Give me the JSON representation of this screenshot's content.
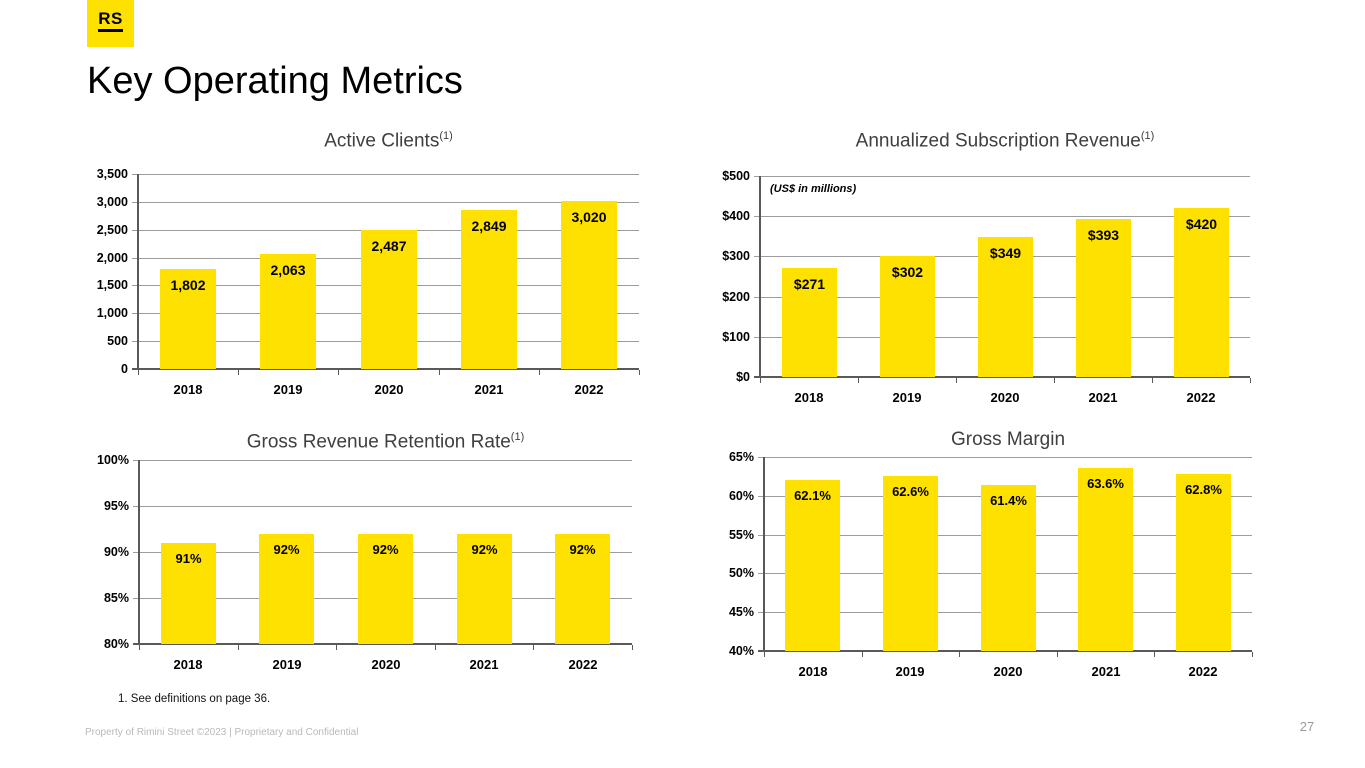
{
  "slide": {
    "logo_text": "RS",
    "title": "Key Operating Metrics",
    "footnote": "1. See definitions on page 36.",
    "footer": "Property of Rimini Street ©2023  |  Proprietary and Confidential",
    "page_number": "27"
  },
  "colors": {
    "bar_yellow": "#FFE100",
    "logo_yellow": "#FFE100",
    "gridline_gray": "#9d9d9d",
    "axis_gray": "#595959",
    "chart_title_gray": "#3f3f3f",
    "footer_gray": "#b9b9b9"
  },
  "chart_data": [
    {
      "type": "bar",
      "title": "Active Clients",
      "title_superscript": "(1)",
      "categories": [
        "2018",
        "2019",
        "2020",
        "2021",
        "2022"
      ],
      "values": [
        1802,
        2063,
        2487,
        2849,
        3020
      ],
      "value_labels": [
        "1,802",
        "2,063",
        "2,487",
        "2,849",
        "3,020"
      ],
      "ylim": [
        0,
        3500
      ],
      "ytick_values": [
        0,
        500,
        1000,
        1500,
        2000,
        2500,
        3000,
        3500
      ],
      "ytick_labels": [
        "0",
        "500",
        "1,000",
        "1,500",
        "2,000",
        "2,500",
        "3,000",
        "3,500"
      ],
      "grid": true,
      "legend": "none"
    },
    {
      "type": "bar",
      "title": "Annualized Subscription Revenue",
      "title_superscript": "(1)",
      "units_note": "(US$ in millions)",
      "categories": [
        "2018",
        "2019",
        "2020",
        "2021",
        "2022"
      ],
      "values": [
        271,
        302,
        349,
        393,
        420
      ],
      "value_labels": [
        "$271",
        "$302",
        "$349",
        "$393",
        "$420"
      ],
      "ylim": [
        0,
        500
      ],
      "ytick_values": [
        0,
        100,
        200,
        300,
        400,
        500
      ],
      "ytick_labels": [
        "$0",
        "$100",
        "$200",
        "$300",
        "$400",
        "$500"
      ],
      "grid": true,
      "legend": "none"
    },
    {
      "type": "bar",
      "title": "Gross Revenue Retention Rate",
      "title_superscript": "(1)",
      "categories": [
        "2018",
        "2019",
        "2020",
        "2021",
        "2022"
      ],
      "values": [
        91,
        92,
        92,
        92,
        92
      ],
      "value_labels": [
        "91%",
        "92%",
        "92%",
        "92%",
        "92%"
      ],
      "ylim": [
        80,
        100
      ],
      "ytick_values": [
        80,
        85,
        90,
        95,
        100
      ],
      "ytick_labels": [
        "80%",
        "85%",
        "90%",
        "95%",
        "100%"
      ],
      "grid": true,
      "legend": "none"
    },
    {
      "type": "bar",
      "title": "Gross Margin",
      "title_superscript": "",
      "categories": [
        "2018",
        "2019",
        "2020",
        "2021",
        "2022"
      ],
      "values": [
        62.1,
        62.6,
        61.4,
        63.6,
        62.8
      ],
      "value_labels": [
        "62.1%",
        "62.6%",
        "61.4%",
        "63.6%",
        "62.8%"
      ],
      "ylim": [
        40,
        65
      ],
      "ytick_values": [
        40,
        45,
        50,
        55,
        60,
        65
      ],
      "ytick_labels": [
        "40%",
        "45%",
        "50%",
        "55%",
        "60%",
        "65%"
      ],
      "grid": true,
      "legend": "none"
    }
  ]
}
